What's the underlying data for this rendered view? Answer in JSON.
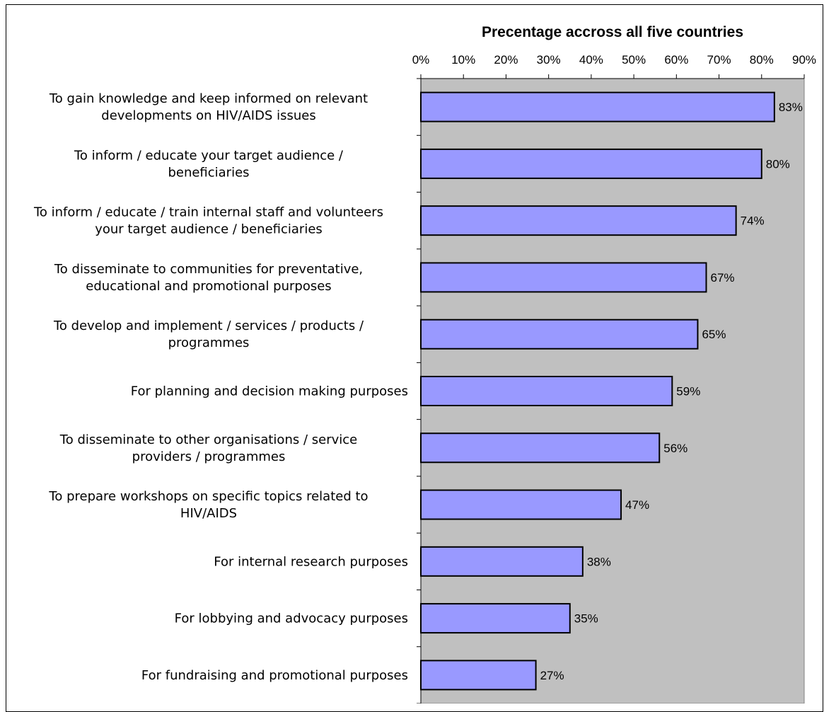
{
  "chart_data": {
    "type": "bar",
    "orientation": "horizontal",
    "title": "Precentage accross all five countries",
    "x_axis_position": "top",
    "xlim": [
      0,
      90
    ],
    "x_ticks": [
      "0%",
      "10%",
      "20%",
      "30%",
      "40%",
      "50%",
      "60%",
      "70%",
      "80%",
      "90%"
    ],
    "grid": false,
    "plot_background": "#c0c0c0",
    "bar_color": "#9999ff",
    "categories": [
      [
        "To gain knowledge and keep informed on relevant",
        "developments on HIV/AIDS issues"
      ],
      [
        "To inform / educate your target audience /",
        "beneficiaries"
      ],
      [
        "To inform / educate / train internal staff and volunteers",
        "your target audience / beneficiaries"
      ],
      [
        "To disseminate to communities for preventative,",
        "educational and promotional purposes"
      ],
      [
        "To develop and implement / services / products /",
        "programmes"
      ],
      [
        "For planning and decision making purposes"
      ],
      [
        "To disseminate to other organisations / service",
        "providers / programmes"
      ],
      [
        "To prepare workshops on specific topics related to",
        "HIV/AIDS"
      ],
      [
        "For internal research purposes"
      ],
      [
        "For lobbying and advocacy purposes"
      ],
      [
        "For fundraising and promotional purposes"
      ]
    ],
    "values": [
      83,
      80,
      74,
      67,
      65,
      59,
      56,
      47,
      38,
      35,
      27
    ],
    "data_labels": [
      "83%",
      "80%",
      "74%",
      "67%",
      "65%",
      "59%",
      "56%",
      "47%",
      "38%",
      "35%",
      "27%"
    ]
  }
}
